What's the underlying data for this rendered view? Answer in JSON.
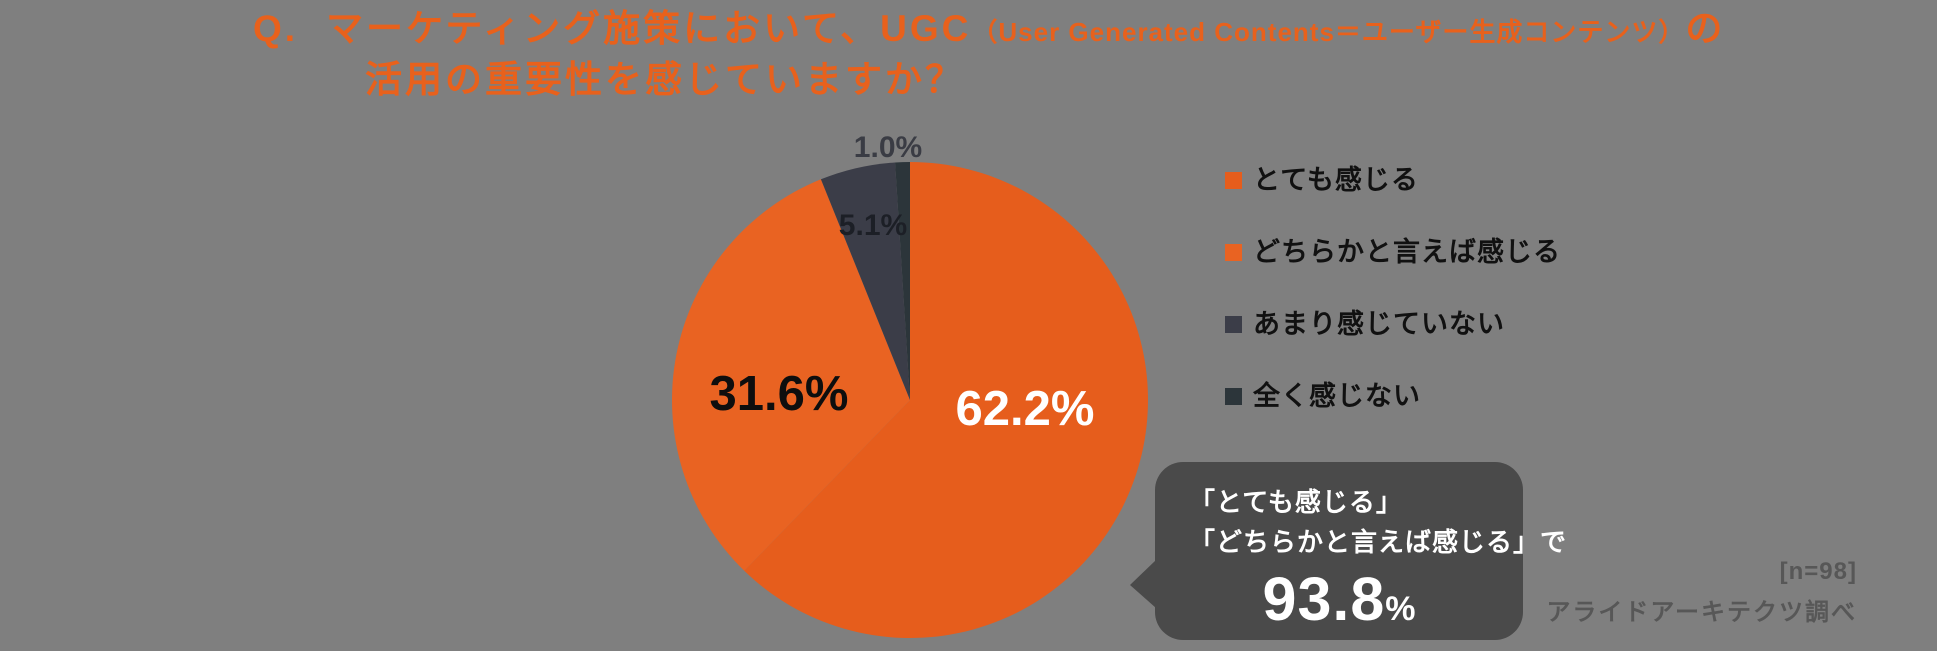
{
  "background_color": "#7F7F7F",
  "title": {
    "prefix": "Q.",
    "line1_main": "マーケティング施策において、UGC",
    "line1_small": "（User Generated Contents＝ユーザー生成コンテンツ）",
    "line1_suffix": "の",
    "line2": "活用の重要性を感じていますか？",
    "color": "#E8611C"
  },
  "chart_data": {
    "type": "pie",
    "title": "Q. マーケティング施策において、UGC（User Generated Contents＝ユーザー生成コンテンツ）の活用の重要性を感じていますか？",
    "categories": [
      "とても感じる",
      "どちらかと言えば感じる",
      "あまり感じていない",
      "全く感じない"
    ],
    "values": [
      62.2,
      31.6,
      5.1,
      1.0
    ],
    "labels": [
      "62.2%",
      "31.6%",
      "5.1%",
      "1.0%"
    ],
    "colors": [
      "#E65D1C",
      "#E96322",
      "#3B3D48",
      "#2C353A"
    ],
    "start_angle_deg": 0,
    "direction": "clockwise",
    "legend_position": "right",
    "sample_size": "[n=98]"
  },
  "legend": {
    "items": [
      {
        "label": "とても感じる",
        "color": "#E65D1C"
      },
      {
        "label": "どちらかと言えば感じる",
        "color": "#E96322"
      },
      {
        "label": "あまり感じていない",
        "color": "#3B3D48"
      },
      {
        "label": "全く感じない",
        "color": "#2C353A"
      }
    ]
  },
  "callout": {
    "line1": "「とても感じる」",
    "line2": "「どちらかと言えば感じる」で",
    "value": "93.8",
    "unit": "%",
    "background": "#4A4A4A"
  },
  "footnote": {
    "sample": "[n=98]",
    "source": "アライドアーキテクツ調べ"
  }
}
